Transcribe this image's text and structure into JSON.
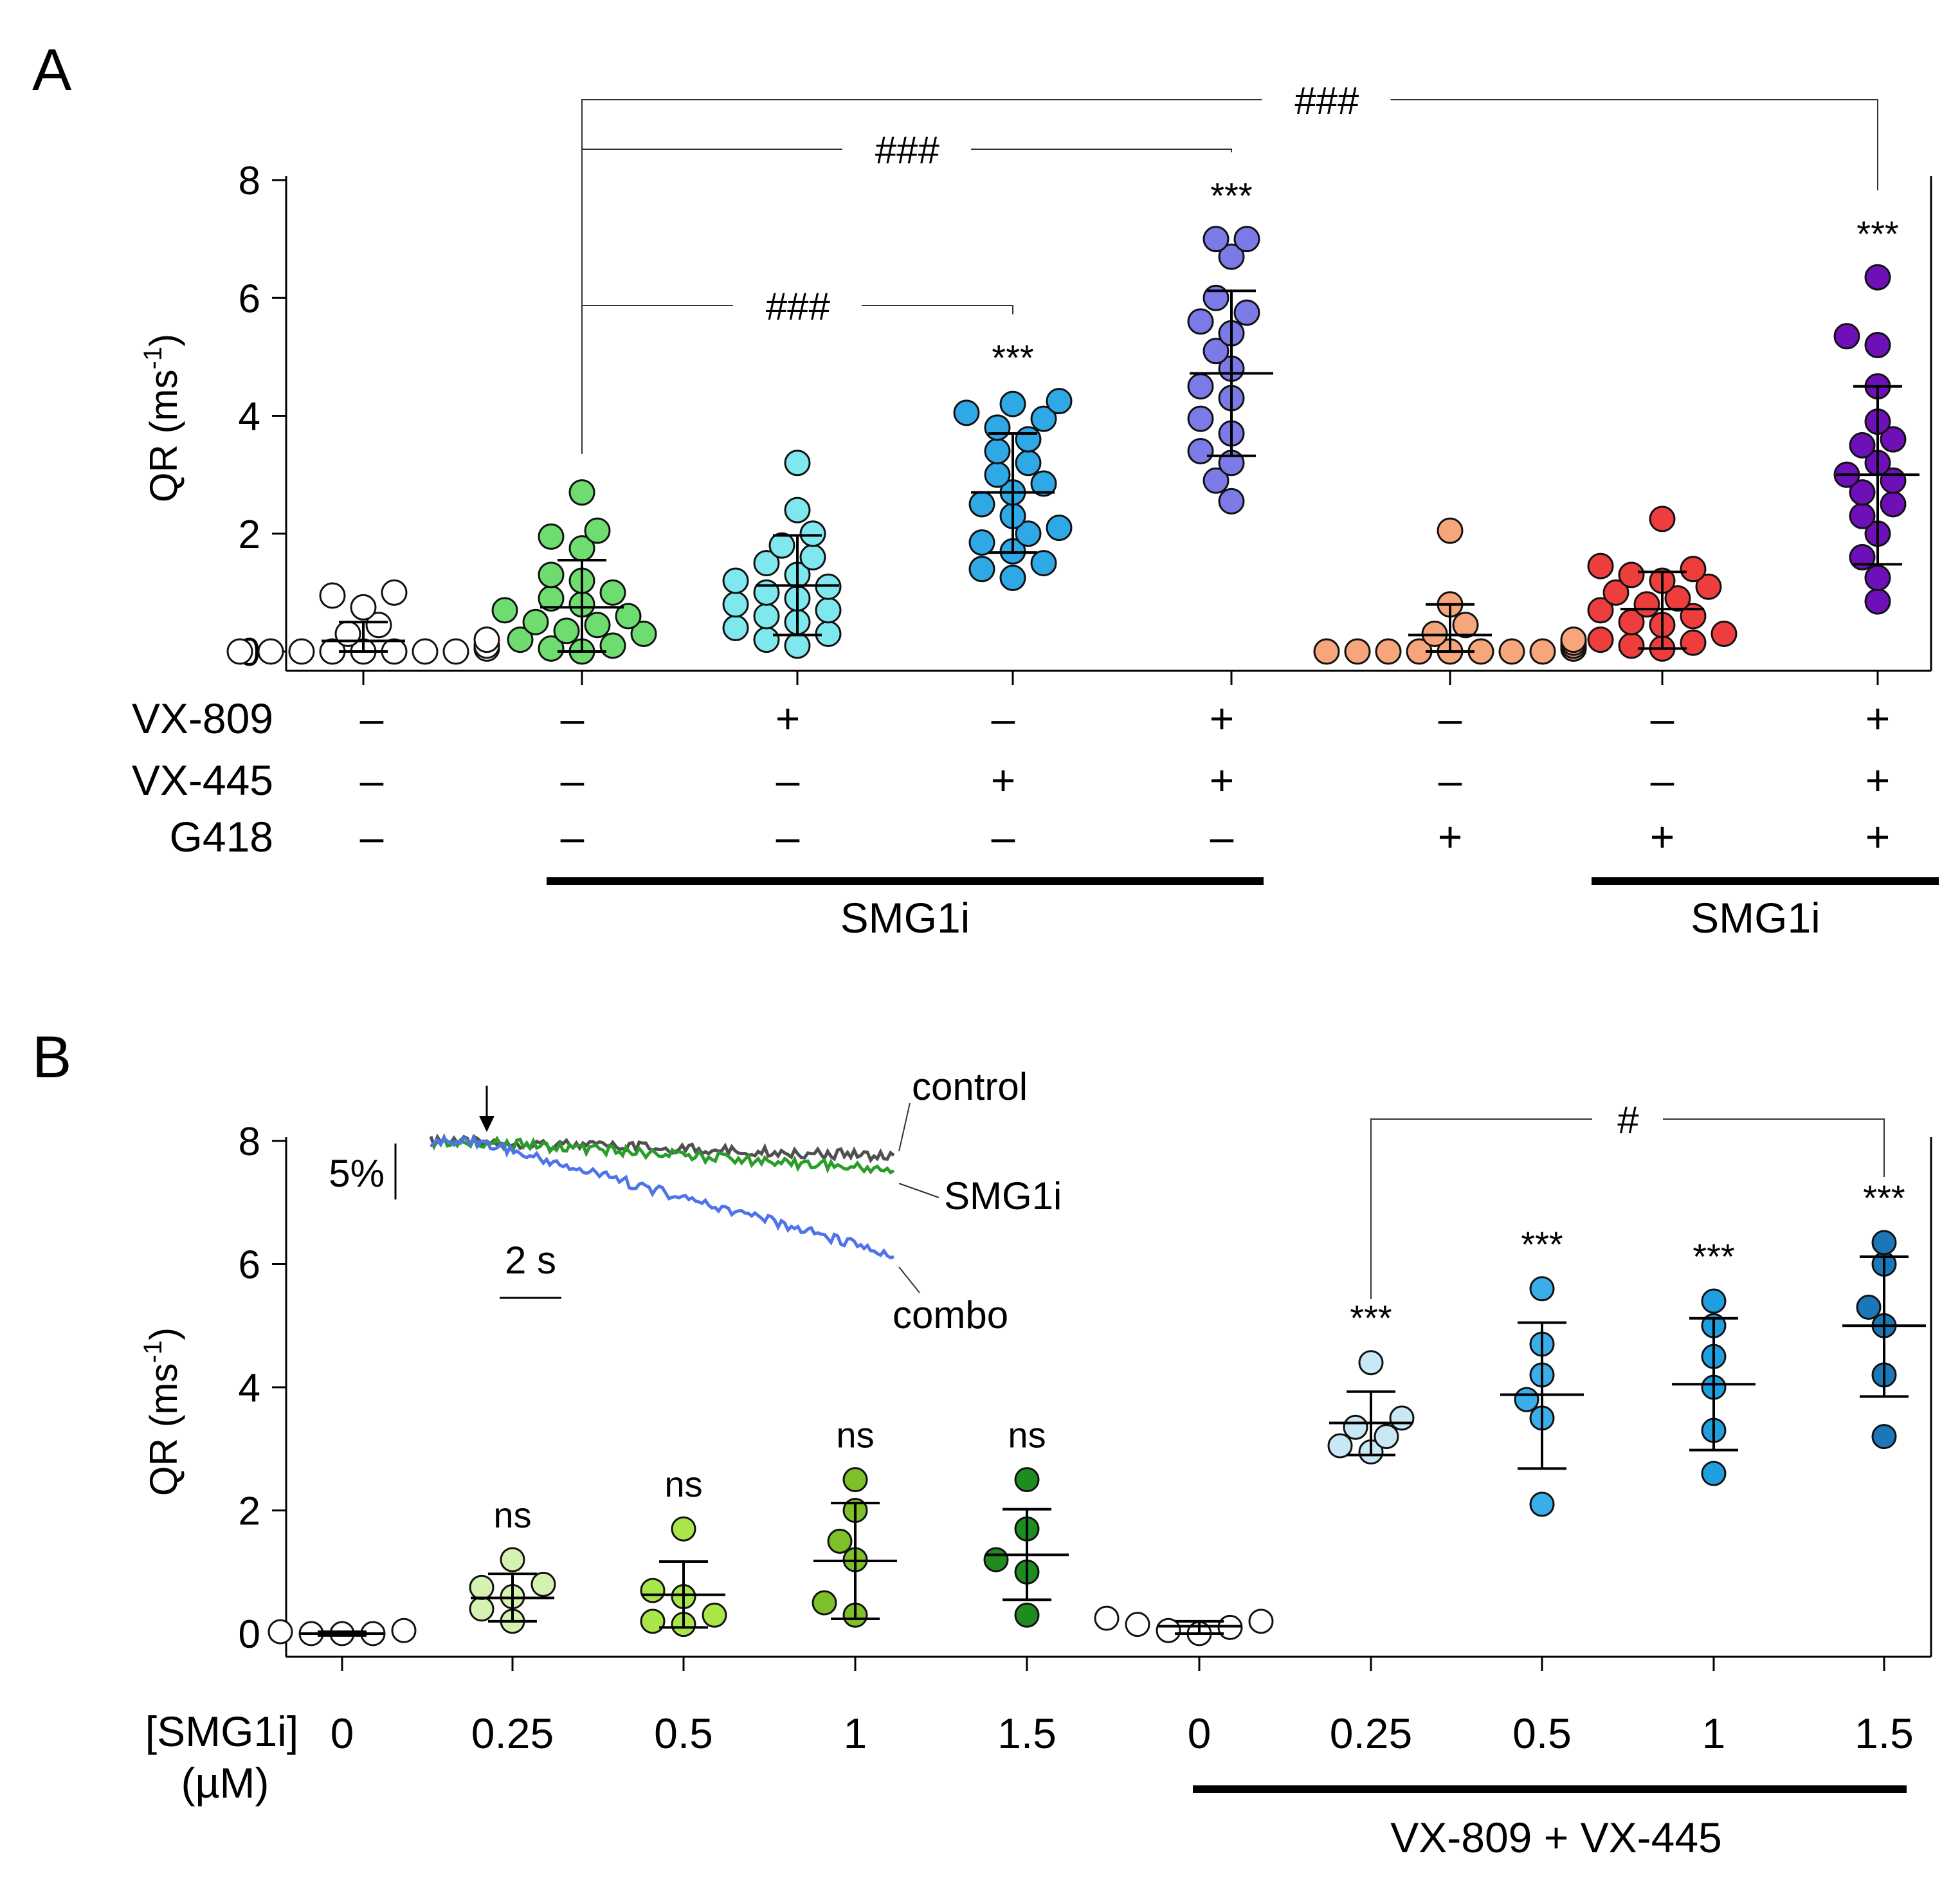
{
  "chart_data": [
    {
      "panel": "A",
      "type": "scatter",
      "panel_label": "A",
      "ylabel": "QR (ms",
      "ylabel_sup": "-1",
      "ylabel_close": ")",
      "ylim": [
        0,
        8
      ],
      "yticks": [
        "0",
        "2",
        "4",
        "6",
        "8"
      ],
      "treatment_rows": [
        {
          "name": "VX-809",
          "values": [
            "–",
            "–",
            "+",
            "–",
            "+",
            "–",
            "–",
            "+"
          ]
        },
        {
          "name": "VX-445",
          "values": [
            "–",
            "–",
            "–",
            "+",
            "+",
            "–",
            "–",
            "+"
          ]
        },
        {
          "name": "G418",
          "values": [
            "–",
            "–",
            "–",
            "–",
            "–",
            "+",
            "+",
            "+"
          ]
        }
      ],
      "bars": [
        {
          "label": "SMG1i",
          "from": 1,
          "to": 4
        },
        {
          "label": "SMG1i",
          "from": 6,
          "to": 7
        }
      ],
      "groups": [
        {
          "color": "#ffffff",
          "mean": 0.18,
          "sd_low": 0.0,
          "sd_high": 0.5,
          "sig": "",
          "points": [
            0,
            0,
            0,
            0,
            0,
            0,
            0,
            0,
            0.05,
            0.1,
            0.2,
            0.3,
            0.45,
            0.75,
            0.95,
            1.0
          ]
        },
        {
          "color": "#6fdc6f",
          "mean": 0.75,
          "sd_low": 0.0,
          "sd_high": 1.55,
          "sig": "",
          "points": [
            0,
            0.05,
            0.1,
            0.2,
            0.3,
            0.35,
            0.45,
            0.5,
            0.6,
            0.7,
            0.8,
            0.9,
            1.0,
            1.2,
            1.3,
            1.75,
            1.95,
            2.05,
            2.7
          ]
        },
        {
          "color": "#7ee8ee",
          "mean": 1.12,
          "sd_low": 0.28,
          "sd_high": 1.97,
          "sig": "",
          "points": [
            0.1,
            0.2,
            0.3,
            0.4,
            0.5,
            0.6,
            0.7,
            0.8,
            0.9,
            1.0,
            1.1,
            1.2,
            1.3,
            1.5,
            1.6,
            1.8,
            2.0,
            2.4,
            3.2
          ]
        },
        {
          "color": "#2fa8e6",
          "mean": 2.7,
          "sd_low": 1.68,
          "sd_high": 3.7,
          "sig": "***",
          "points": [
            1.25,
            1.4,
            1.5,
            1.7,
            1.85,
            2.0,
            2.1,
            2.3,
            2.5,
            2.7,
            2.85,
            3.0,
            3.2,
            3.4,
            3.6,
            3.8,
            3.95,
            4.05,
            4.2,
            4.25
          ]
        },
        {
          "color": "#7c7ae6",
          "mean": 4.72,
          "sd_low": 3.32,
          "sd_high": 6.12,
          "sig": "***",
          "points": [
            2.55,
            2.9,
            3.2,
            3.4,
            3.7,
            3.95,
            4.3,
            4.5,
            4.8,
            5.1,
            5.4,
            5.6,
            5.75,
            6.0,
            6.7,
            7.0,
            7.0
          ]
        },
        {
          "color": "#f7a57b",
          "mean": 0.28,
          "sd_low": 0.0,
          "sd_high": 0.8,
          "sig": "",
          "points": [
            0,
            0,
            0,
            0,
            0,
            0,
            0,
            0,
            0.05,
            0.05,
            0.1,
            0.1,
            0.15,
            0.2,
            0.3,
            0.45,
            0.8,
            2.05
          ]
        },
        {
          "color": "#ee3d3d",
          "mean": 0.72,
          "sd_low": 0.05,
          "sd_high": 1.35,
          "sig": "",
          "points": [
            0.05,
            0.1,
            0.15,
            0.2,
            0.3,
            0.45,
            0.5,
            0.6,
            0.7,
            0.8,
            0.9,
            1.0,
            1.1,
            1.2,
            1.3,
            1.4,
            1.45,
            2.25
          ]
        },
        {
          "color": "#6e10b8",
          "mean": 3.0,
          "sd_low": 1.48,
          "sd_high": 4.5,
          "sig": "***",
          "points": [
            0.85,
            1.25,
            1.6,
            2.0,
            2.3,
            2.5,
            2.7,
            2.9,
            3.0,
            3.2,
            3.5,
            3.6,
            3.9,
            4.5,
            5.2,
            5.35,
            6.35
          ]
        }
      ],
      "brackets": [
        {
          "from": 1,
          "to": 3,
          "label": "###"
        },
        {
          "from": 1,
          "to": 4,
          "label": "###"
        },
        {
          "from": 1,
          "to": 7,
          "label": "###"
        }
      ]
    },
    {
      "panel": "B",
      "type": "scatter",
      "panel_label": "B",
      "ylabel": "QR (ms",
      "ylabel_sup": "-1",
      "ylabel_close": ")",
      "ylim": [
        0,
        8
      ],
      "yticks": [
        "0",
        "2",
        "4",
        "6",
        "8"
      ],
      "xlabel_line1": "[SMG1i]",
      "xlabel_line2": "(µM)",
      "categories": [
        "0",
        "0.25",
        "0.5",
        "1",
        "1.5",
        "0",
        "0.25",
        "0.5",
        "1",
        "1.5"
      ],
      "bar_label": "VX-809 + VX-445",
      "groups": [
        {
          "color": "#ffffff",
          "mean": 0.0,
          "sd_low": -0.03,
          "sd_high": 0.03,
          "sig": "",
          "points": [
            0,
            0,
            0,
            0.03,
            0.05
          ]
        },
        {
          "color": "#d5f2b0",
          "mean": 0.58,
          "sd_low": 0.2,
          "sd_high": 0.97,
          "sig": "ns",
          "points": [
            0.2,
            0.4,
            0.6,
            0.75,
            0.8,
            1.2
          ]
        },
        {
          "color": "#a9e64a",
          "mean": 0.63,
          "sd_low": 0.1,
          "sd_high": 1.17,
          "sig": "ns",
          "points": [
            0.15,
            0.2,
            0.3,
            0.6,
            0.7,
            1.7
          ]
        },
        {
          "color": "#7dc02a",
          "mean": 1.18,
          "sd_low": 0.24,
          "sd_high": 2.12,
          "sig": "ns",
          "points": [
            0.3,
            0.5,
            1.2,
            1.5,
            2.0,
            2.5
          ]
        },
        {
          "color": "#1e8c1e",
          "mean": 1.28,
          "sd_low": 0.55,
          "sd_high": 2.02,
          "sig": "ns",
          "points": [
            0.3,
            1.0,
            1.2,
            1.7,
            2.5
          ]
        },
        {
          "color": "#ffffff",
          "mean": 0.12,
          "sd_low": 0.0,
          "sd_high": 0.2,
          "sig": "",
          "points": [
            0,
            0.05,
            0.1,
            0.15,
            0.2,
            0.25
          ]
        },
        {
          "color": "#c8e8f6",
          "mean": 3.42,
          "sd_low": 2.9,
          "sd_high": 3.93,
          "sig": "***",
          "points": [
            2.95,
            3.05,
            3.2,
            3.35,
            3.5,
            4.4
          ]
        },
        {
          "color": "#3aaee8",
          "mean": 3.88,
          "sd_low": 2.68,
          "sd_high": 5.05,
          "sig": "***",
          "points": [
            2.1,
            3.5,
            3.8,
            4.2,
            4.7,
            5.6
          ]
        },
        {
          "color": "#209fe0",
          "mean": 4.05,
          "sd_low": 2.98,
          "sd_high": 5.12,
          "sig": "***",
          "points": [
            2.6,
            3.3,
            4.0,
            4.5,
            5.0,
            5.4
          ]
        },
        {
          "color": "#1b77b8",
          "mean": 5.0,
          "sd_low": 3.85,
          "sd_high": 6.12,
          "sig": "***",
          "points": [
            3.2,
            4.2,
            5.0,
            5.3,
            6.0,
            6.35
          ]
        }
      ],
      "brackets": [
        {
          "from": 6,
          "to": 9,
          "label": "#"
        }
      ],
      "inset": {
        "scale_y": "5%",
        "scale_x": "2 s",
        "traces": [
          {
            "name": "control",
            "color": "#505050",
            "drop": 0.028
          },
          {
            "name": "SMG1i",
            "color": "#2a9c2a",
            "drop": 0.055
          },
          {
            "name": "combo",
            "color": "#4f74ea",
            "drop": 0.22
          }
        ]
      }
    }
  ]
}
